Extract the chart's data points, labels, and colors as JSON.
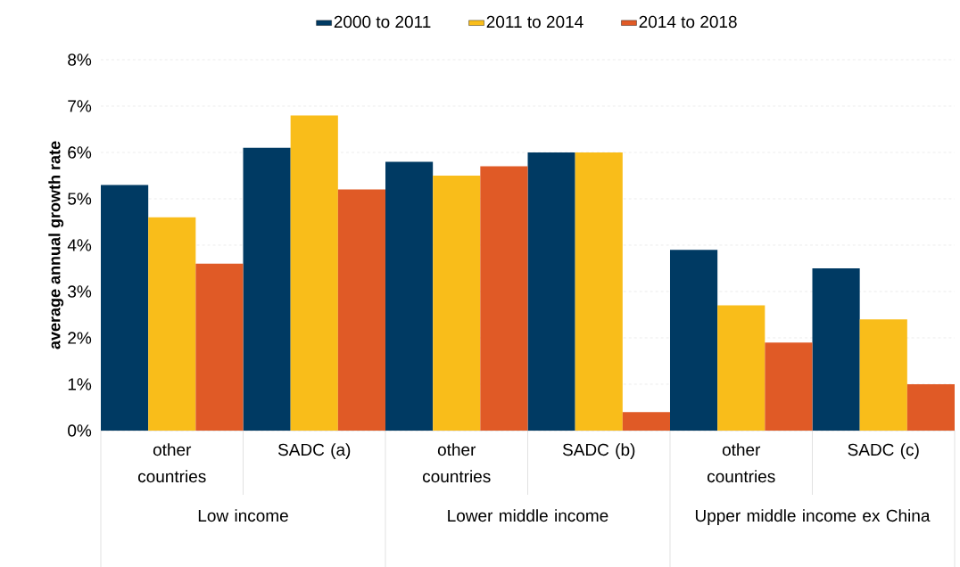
{
  "chart_data": {
    "type": "bar",
    "ylabel": "average annual growth rate",
    "categories": [
      "other countries",
      "SADC (a)",
      "other countries",
      "SADC (b)",
      "other countries",
      "SADC (c)"
    ],
    "series": [
      {
        "name": "2000 to 2011",
        "color": "#003a63",
        "values": [
          5.3,
          6.1,
          5.8,
          6.0,
          3.9,
          3.5
        ]
      },
      {
        "name": "2011 to 2014",
        "color": "#f9bd1a",
        "values": [
          4.6,
          6.8,
          5.5,
          6.0,
          2.7,
          2.4
        ]
      },
      {
        "name": "2014 to 2018",
        "color": "#e05a26",
        "values": [
          3.6,
          5.2,
          5.7,
          0.4,
          1.9,
          1.0
        ]
      }
    ],
    "annotations": [
      "Low income",
      "Lower middle income",
      "Upper middle income ex China"
    ],
    "ylim": [
      0,
      8
    ],
    "yticks": [
      {
        "value": 0,
        "label": "0%"
      },
      {
        "value": 1,
        "label": "1%"
      },
      {
        "value": 2,
        "label": "2%"
      },
      {
        "value": 3,
        "label": "3%"
      },
      {
        "value": 4,
        "label": "4%"
      },
      {
        "value": 5,
        "label": "5%"
      },
      {
        "value": 6,
        "label": "6%"
      },
      {
        "value": 7,
        "label": "7%"
      },
      {
        "value": 8,
        "label": "8%"
      }
    ],
    "grid": "y",
    "legend": "top"
  }
}
